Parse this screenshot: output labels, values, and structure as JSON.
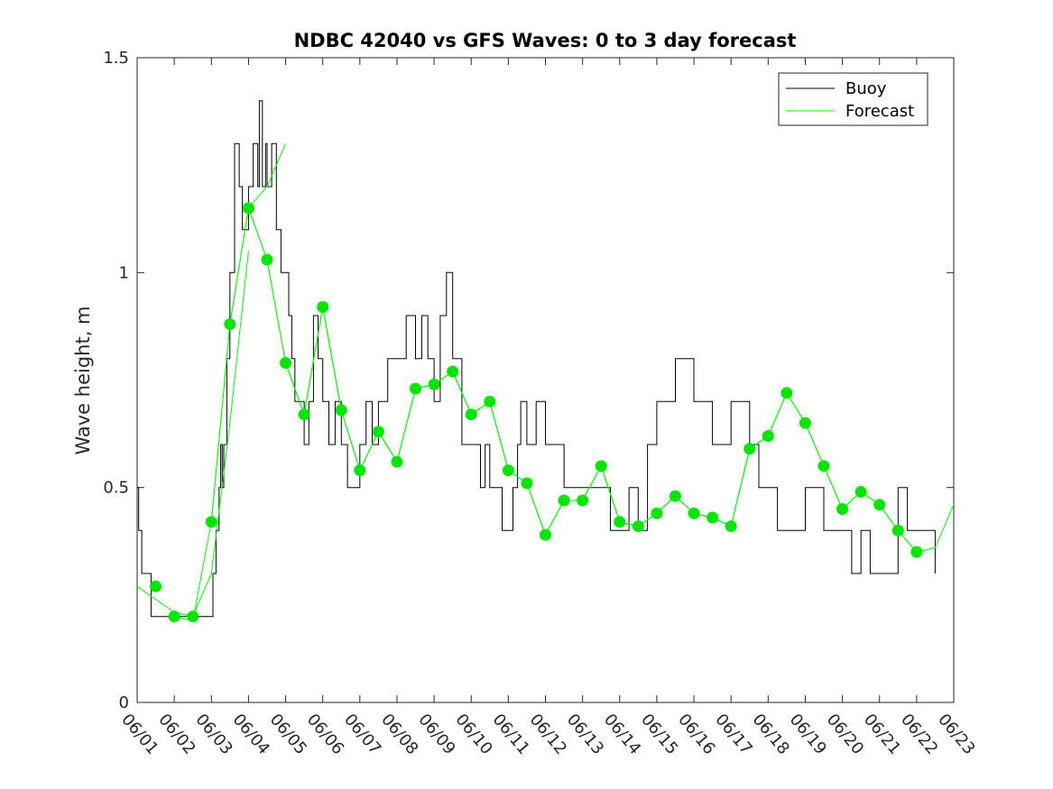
{
  "chart_data": {
    "type": "line",
    "title": "NDBC 42040 vs GFS Waves: 0 to 3 day forecast",
    "xlabel": "",
    "ylabel": "Wave height, m",
    "xlim": [
      "06/01",
      "06/23"
    ],
    "ylim": [
      0,
      1.5
    ],
    "x_ticks": [
      "06/01",
      "06/02",
      "06/03",
      "06/04",
      "06/05",
      "06/06",
      "06/07",
      "06/08",
      "06/09",
      "06/10",
      "06/11",
      "06/12",
      "06/13",
      "06/14",
      "06/15",
      "06/16",
      "06/17",
      "06/18",
      "06/19",
      "06/20",
      "06/21",
      "06/22",
      "06/23"
    ],
    "y_ticks": [
      {
        "value": 0,
        "label": "0"
      },
      {
        "value": 0.5,
        "label": "0.5"
      },
      {
        "value": 1,
        "label": "1"
      },
      {
        "value": 1.5,
        "label": "1.5"
      }
    ],
    "legend": {
      "position": "top-right",
      "entries": [
        {
          "name": "Buoy",
          "color": "#000000"
        },
        {
          "name": "Forecast",
          "color": "#00ff00"
        }
      ]
    },
    "colors": {
      "buoy": "#000000",
      "forecast": "#00ff00",
      "markers": "#00e600"
    },
    "series": [
      {
        "name": "Buoy",
        "x": [
          "06/01 00:00",
          "06/01 01:00",
          "06/01 02:00",
          "06/01 03:00",
          "06/01 06:00",
          "06/01 09:00",
          "06/01 12:00",
          "06/01 15:00",
          "06/01 18:00",
          "06/02 06:00",
          "06/02 18:00",
          "06/03 00:00",
          "06/03 01:00",
          "06/03 03:00",
          "06/03 05:00",
          "06/03 06:00",
          "06/03 07:00",
          "06/03 08:00",
          "06/03 10:00",
          "06/03 12:00",
          "06/03 15:00",
          "06/03 18:00",
          "06/03 20:00",
          "06/04 00:00",
          "06/04 03:00",
          "06/04 06:00",
          "06/04 07:00",
          "06/04 09:00",
          "06/04 11:00",
          "06/04 12:00",
          "06/04 15:00",
          "06/04 18:00",
          "06/04 21:00",
          "06/05 00:00",
          "06/05 02:00",
          "06/05 04:00",
          "06/05 06:00",
          "06/05 09:00",
          "06/05 12:00",
          "06/05 15:00",
          "06/05 18:00",
          "06/05 21:00",
          "06/06 00:00",
          "06/06 04:00",
          "06/06 08:00",
          "06/06 12:00",
          "06/06 16:00",
          "06/06 20:00",
          "06/07 00:00",
          "06/07 04:00",
          "06/07 08:00",
          "06/07 12:00",
          "06/07 18:00",
          "06/08 00:00",
          "06/08 06:00",
          "06/08 12:00",
          "06/08 16:00",
          "06/08 20:00",
          "06/09 00:00",
          "06/09 04:00",
          "06/09 08:00",
          "06/09 12:00",
          "06/09 18:00",
          "06/10 00:00",
          "06/10 06:00",
          "06/10 09:00",
          "06/10 12:00",
          "06/10 16:00",
          "06/10 20:00",
          "06/11 00:00",
          "06/11 03:00",
          "06/11 06:00",
          "06/11 08:00",
          "06/11 12:00",
          "06/11 18:00",
          "06/12 00:00",
          "06/12 06:00",
          "06/12 12:00",
          "06/12 18:00",
          "06/13 00:00",
          "06/13 06:00",
          "06/13 12:00",
          "06/13 18:00",
          "06/14 00:00",
          "06/14 06:00",
          "06/14 12:00",
          "06/14 18:00",
          "06/15 00:00",
          "06/15 12:00",
          "06/16 00:00",
          "06/16 12:00",
          "06/17 00:00",
          "06/17 12:00",
          "06/17 18:00",
          "06/18 00:00",
          "06/18 06:00",
          "06/18 12:00",
          "06/18 18:00",
          "06/19 00:00",
          "06/19 06:00",
          "06/19 12:00",
          "06/20 00:00",
          "06/20 06:00",
          "06/20 10:00",
          "06/20 12:00",
          "06/20 18:00",
          "06/21 00:00",
          "06/21 06:00",
          "06/21 12:00",
          "06/21 18:00",
          "06/22 00:00",
          "06/22 06:00",
          "06/22 12:00"
        ],
        "y": [
          0.5,
          0.4,
          0.4,
          0.3,
          0.3,
          0.2,
          0.2,
          0.2,
          0.2,
          0.2,
          0.2,
          0.2,
          0.3,
          0.4,
          0.5,
          0.6,
          0.5,
          0.6,
          0.8,
          1.0,
          1.3,
          1.2,
          1.1,
          1.2,
          1.3,
          1.2,
          1.4,
          1.2,
          1.3,
          1.2,
          1.3,
          1.1,
          1.0,
          1.0,
          0.9,
          0.8,
          0.7,
          0.7,
          0.6,
          0.7,
          0.9,
          0.8,
          0.7,
          0.6,
          0.7,
          0.6,
          0.5,
          0.5,
          0.6,
          0.7,
          0.6,
          0.7,
          0.8,
          0.8,
          0.9,
          0.8,
          0.9,
          0.8,
          0.7,
          0.9,
          1.0,
          0.8,
          0.6,
          0.6,
          0.5,
          0.6,
          0.5,
          0.5,
          0.4,
          0.4,
          0.5,
          0.6,
          0.7,
          0.6,
          0.7,
          0.6,
          0.6,
          0.5,
          0.5,
          0.5,
          0.5,
          0.5,
          0.4,
          0.4,
          0.5,
          0.4,
          0.6,
          0.7,
          0.8,
          0.7,
          0.6,
          0.7,
          0.6,
          0.5,
          0.5,
          0.4,
          0.4,
          0.4,
          0.5,
          0.5,
          0.4,
          0.4,
          0.3,
          0.3,
          0.4,
          0.3,
          0.3,
          0.3,
          0.5,
          0.4,
          0.4,
          0.4,
          0.3
        ]
      },
      {
        "name": "Forecast",
        "x": [
          "06/01 00:00",
          "06/01 12:00",
          "06/02 00:00",
          "06/02 12:00",
          "06/03 00:00",
          "06/03 12:00",
          "06/04 00:00"
        ],
        "y": [
          0.27,
          0.24,
          0.21,
          0.2,
          0.3,
          0.65,
          1.05
        ]
      },
      {
        "name": "Forecast",
        "x": [
          "06/02 00:00",
          "06/02 12:00",
          "06/03 00:00",
          "06/03 12:00",
          "06/04 00:00",
          "06/04 12:00",
          "06/05 00:00"
        ],
        "y": [
          0.2,
          0.19,
          0.42,
          0.88,
          1.15,
          1.2,
          1.3
        ]
      },
      {
        "name": "Forecast",
        "x": [
          "06/03 00:00",
          "06/03 12:00",
          "06/04 00:00",
          "06/04 12:00",
          "06/05 00:00",
          "06/05 12:00",
          "06/06 00:00"
        ],
        "y": [
          0.42,
          0.88,
          1.15,
          1.03,
          0.79,
          0.67,
          0.92
        ]
      },
      {
        "name": "Forecast",
        "x": [
          "06/04 00:00",
          "06/04 12:00",
          "06/05 00:00",
          "06/05 12:00",
          "06/06 00:00",
          "06/06 12:00",
          "06/07 00:00"
        ],
        "y": [
          1.15,
          1.03,
          0.79,
          0.67,
          0.92,
          0.68,
          0.54
        ]
      },
      {
        "name": "Forecast",
        "x": [
          "06/05 00:00",
          "06/05 12:00",
          "06/06 00:00",
          "06/06 12:00",
          "06/07 00:00",
          "06/07 12:00",
          "06/08 00:00"
        ],
        "y": [
          0.79,
          0.67,
          0.92,
          0.68,
          0.54,
          0.63,
          0.56
        ]
      },
      {
        "name": "Forecast",
        "x": [
          "06/06 00:00",
          "06/06 12:00",
          "06/07 00:00",
          "06/07 12:00",
          "06/08 00:00",
          "06/08 12:00",
          "06/09 00:00"
        ],
        "y": [
          0.92,
          0.68,
          0.54,
          0.63,
          0.56,
          0.73,
          0.74
        ]
      },
      {
        "name": "Forecast",
        "x": [
          "06/07 00:00",
          "06/07 12:00",
          "06/08 00:00",
          "06/08 12:00",
          "06/09 00:00",
          "06/09 12:00",
          "06/10 00:00"
        ],
        "y": [
          0.54,
          0.63,
          0.56,
          0.73,
          0.74,
          0.77,
          0.67
        ]
      },
      {
        "name": "Forecast",
        "x": [
          "06/08 00:00",
          "06/08 12:00",
          "06/09 00:00",
          "06/09 12:00",
          "06/10 00:00",
          "06/10 12:00",
          "06/11 00:00"
        ],
        "y": [
          0.56,
          0.73,
          0.74,
          0.77,
          0.67,
          0.7,
          0.54
        ]
      },
      {
        "name": "Forecast",
        "x": [
          "06/09 00:00",
          "06/09 12:00",
          "06/10 00:00",
          "06/10 12:00",
          "06/11 00:00",
          "06/11 12:00",
          "06/12 00:00"
        ],
        "y": [
          0.74,
          0.77,
          0.67,
          0.7,
          0.54,
          0.51,
          0.39
        ]
      },
      {
        "name": "Forecast",
        "x": [
          "06/10 00:00",
          "06/10 12:00",
          "06/11 00:00",
          "06/11 12:00",
          "06/12 00:00",
          "06/12 12:00",
          "06/13 00:00"
        ],
        "y": [
          0.67,
          0.7,
          0.54,
          0.51,
          0.39,
          0.47,
          0.47
        ]
      },
      {
        "name": "Forecast",
        "x": [
          "06/11 00:00",
          "06/11 12:00",
          "06/12 00:00",
          "06/12 12:00",
          "06/13 00:00",
          "06/13 12:00",
          "06/14 00:00"
        ],
        "y": [
          0.54,
          0.51,
          0.39,
          0.47,
          0.47,
          0.55,
          0.42
        ]
      },
      {
        "name": "Forecast",
        "x": [
          "06/12 00:00",
          "06/12 12:00",
          "06/13 00:00",
          "06/13 12:00",
          "06/14 00:00",
          "06/14 12:00",
          "06/15 00:00"
        ],
        "y": [
          0.39,
          0.47,
          0.47,
          0.55,
          0.42,
          0.41,
          0.44
        ]
      },
      {
        "name": "Forecast",
        "x": [
          "06/13 00:00",
          "06/13 12:00",
          "06/14 00:00",
          "06/14 12:00",
          "06/15 00:00",
          "06/15 12:00",
          "06/16 00:00"
        ],
        "y": [
          0.47,
          0.55,
          0.42,
          0.41,
          0.44,
          0.48,
          0.44
        ]
      },
      {
        "name": "Forecast",
        "x": [
          "06/14 00:00",
          "06/14 12:00",
          "06/15 00:00",
          "06/15 12:00",
          "06/16 00:00",
          "06/16 12:00",
          "06/17 00:00"
        ],
        "y": [
          0.42,
          0.41,
          0.44,
          0.48,
          0.44,
          0.43,
          0.41
        ]
      },
      {
        "name": "Forecast",
        "x": [
          "06/15 00:00",
          "06/15 12:00",
          "06/16 00:00",
          "06/16 12:00",
          "06/17 00:00",
          "06/17 12:00",
          "06/18 00:00"
        ],
        "y": [
          0.44,
          0.48,
          0.44,
          0.43,
          0.41,
          0.59,
          0.62
        ]
      },
      {
        "name": "Forecast",
        "x": [
          "06/16 00:00",
          "06/16 12:00",
          "06/17 00:00",
          "06/17 12:00",
          "06/18 00:00",
          "06/18 12:00",
          "06/19 00:00"
        ],
        "y": [
          0.44,
          0.43,
          0.41,
          0.59,
          0.62,
          0.72,
          0.65
        ]
      },
      {
        "name": "Forecast",
        "x": [
          "06/17 00:00",
          "06/17 12:00",
          "06/18 00:00",
          "06/18 12:00",
          "06/19 00:00",
          "06/19 12:00",
          "06/20 00:00"
        ],
        "y": [
          0.41,
          0.59,
          0.62,
          0.72,
          0.65,
          0.55,
          0.45
        ]
      },
      {
        "name": "Forecast",
        "x": [
          "06/18 00:00",
          "06/18 12:00",
          "06/19 00:00",
          "06/19 12:00",
          "06/20 00:00",
          "06/20 12:00",
          "06/21 00:00"
        ],
        "y": [
          0.62,
          0.72,
          0.65,
          0.55,
          0.45,
          0.49,
          0.46
        ]
      },
      {
        "name": "Forecast",
        "x": [
          "06/19 00:00",
          "06/19 12:00",
          "06/20 00:00",
          "06/20 12:00",
          "06/21 00:00",
          "06/21 12:00",
          "06/22 00:00"
        ],
        "y": [
          0.65,
          0.55,
          0.45,
          0.49,
          0.46,
          0.4,
          0.35
        ]
      },
      {
        "name": "Forecast",
        "x": [
          "06/20 00:00",
          "06/20 12:00",
          "06/21 00:00",
          "06/21 12:00",
          "06/22 00:00",
          "06/22 12:00",
          "06/23 00:00"
        ],
        "y": [
          0.45,
          0.49,
          0.46,
          0.4,
          0.35,
          0.36,
          0.46
        ]
      }
    ],
    "markers": {
      "x": [
        "06/01 12:00",
        "06/02 00:00",
        "06/02 12:00",
        "06/03 00:00",
        "06/03 12:00",
        "06/04 00:00",
        "06/04 12:00",
        "06/05 00:00",
        "06/05 12:00",
        "06/06 00:00",
        "06/06 12:00",
        "06/07 00:00",
        "06/07 12:00",
        "06/08 00:00",
        "06/08 12:00",
        "06/09 00:00",
        "06/09 12:00",
        "06/10 00:00",
        "06/10 12:00",
        "06/11 00:00",
        "06/11 12:00",
        "06/12 00:00",
        "06/12 12:00",
        "06/13 00:00",
        "06/13 12:00",
        "06/14 00:00",
        "06/14 12:00",
        "06/15 00:00",
        "06/15 12:00",
        "06/16 00:00",
        "06/16 12:00",
        "06/17 00:00",
        "06/17 12:00",
        "06/18 00:00",
        "06/18 12:00",
        "06/19 00:00",
        "06/19 12:00",
        "06/20 00:00",
        "06/20 12:00",
        "06/21 00:00",
        "06/21 12:00",
        "06/22 00:00"
      ],
      "y": [
        0.27,
        0.2,
        0.2,
        0.42,
        0.88,
        1.15,
        1.03,
        0.79,
        0.67,
        0.92,
        0.68,
        0.54,
        0.63,
        0.56,
        0.73,
        0.74,
        0.77,
        0.67,
        0.7,
        0.54,
        0.51,
        0.39,
        0.47,
        0.47,
        0.55,
        0.42,
        0.41,
        0.44,
        0.48,
        0.44,
        0.43,
        0.41,
        0.59,
        0.62,
        0.72,
        0.65,
        0.55,
        0.45,
        0.49,
        0.46,
        0.4,
        0.35
      ]
    }
  }
}
